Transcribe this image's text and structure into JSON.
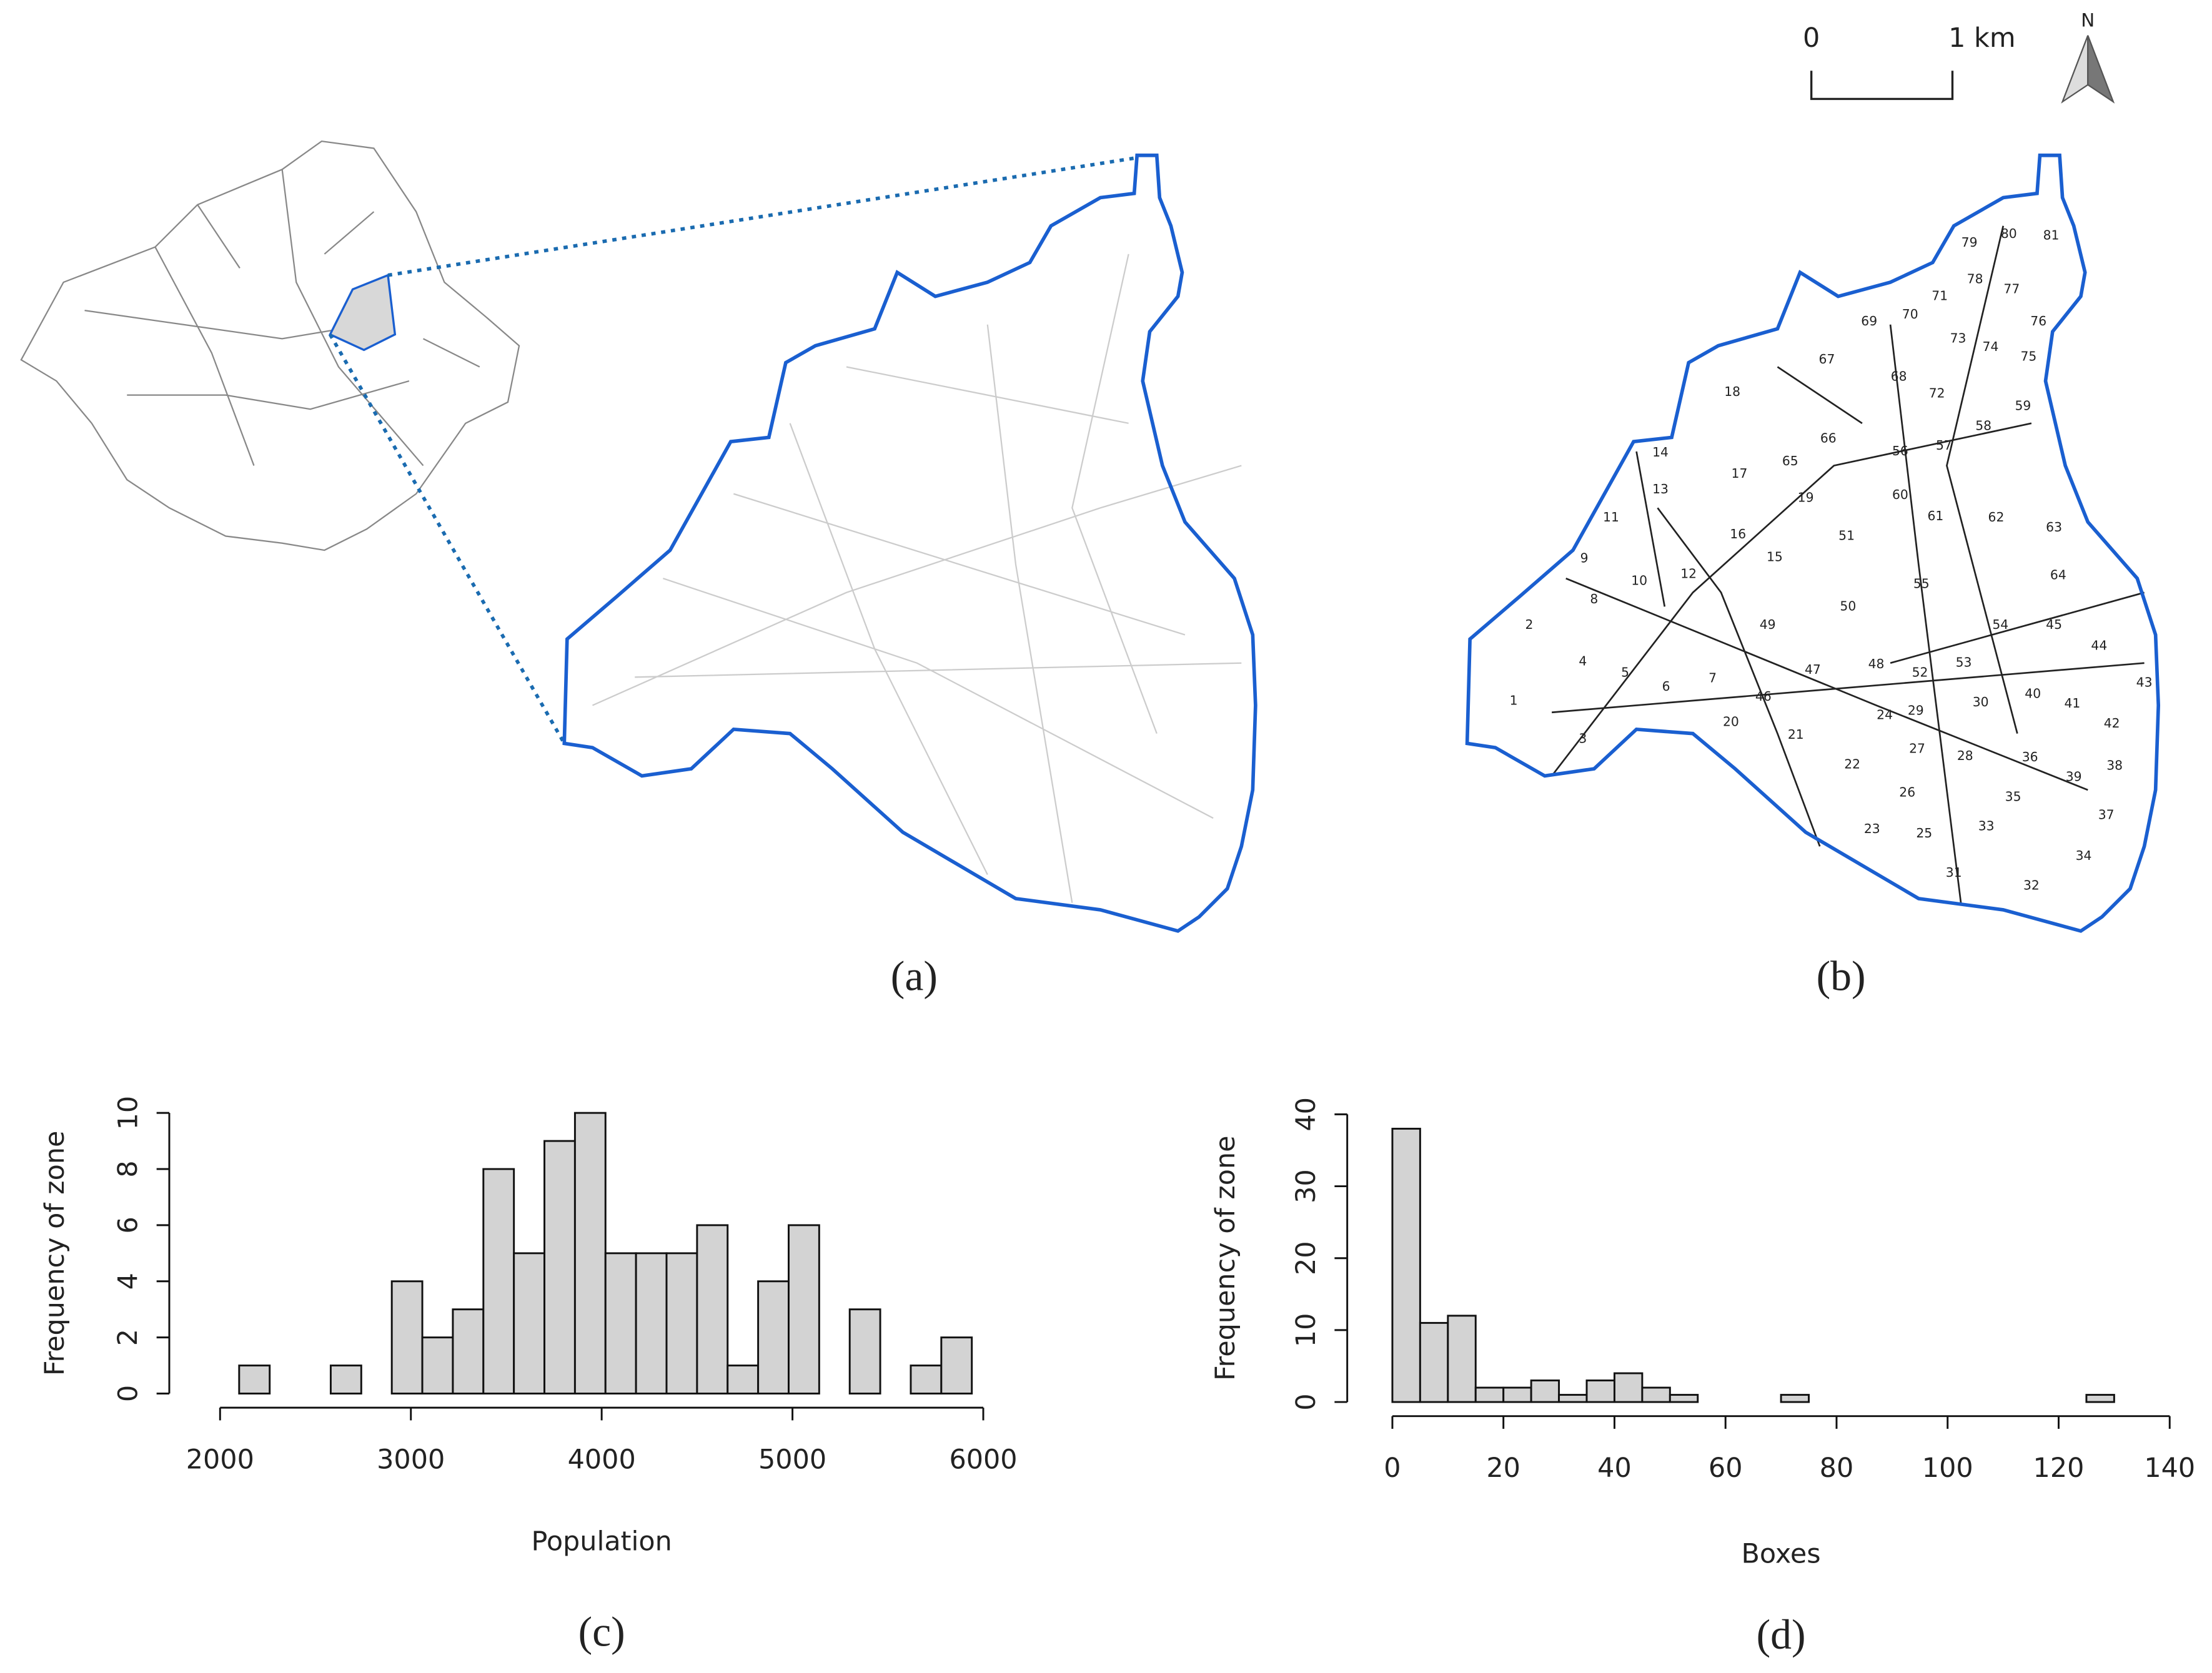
{
  "scale_bar": {
    "start": "0",
    "end": "1 km"
  },
  "north_arrow": "N",
  "panel_a": {
    "caption": "(a)"
  },
  "panel_b": {
    "caption": "(b)",
    "zone_labels": [
      1,
      2,
      3,
      4,
      5,
      6,
      7,
      8,
      9,
      10,
      11,
      12,
      13,
      14,
      15,
      16,
      17,
      18,
      19,
      20,
      21,
      22,
      23,
      24,
      25,
      26,
      27,
      28,
      29,
      30,
      31,
      32,
      33,
      34,
      35,
      36,
      37,
      38,
      39,
      40,
      41,
      42,
      43,
      44,
      45,
      46,
      47,
      48,
      49,
      50,
      51,
      52,
      53,
      54,
      55,
      56,
      57,
      58,
      59,
      60,
      61,
      62,
      63,
      64,
      65,
      66,
      67,
      68,
      69,
      70,
      71,
      72,
      73,
      74,
      75,
      76,
      77,
      78,
      79,
      80,
      81
    ]
  },
  "chart_data": [
    {
      "type": "histogram",
      "caption": "(c)",
      "x_label": "Population",
      "y_label": "Frequency of zone",
      "bins": [
        2100,
        2260,
        2420,
        2580,
        2740,
        2900,
        3060,
        3220,
        3380,
        3540,
        3700,
        3860,
        4020,
        4180,
        4340,
        4500,
        4660,
        4820,
        4980,
        5140,
        5300,
        5460,
        5620,
        5780,
        5940
      ],
      "values": [
        1,
        0,
        0,
        1,
        0,
        4,
        2,
        3,
        8,
        5,
        9,
        10,
        5,
        5,
        5,
        6,
        1,
        4,
        6,
        0,
        3,
        0,
        1,
        2
      ],
      "color": "#d3d3d3",
      "xlim": [
        2000,
        6000
      ],
      "xticks": [
        2000,
        3000,
        4000,
        5000,
        6000
      ],
      "ylim": [
        0,
        10
      ],
      "yticks": [
        0,
        2,
        4,
        6,
        8,
        10
      ]
    },
    {
      "type": "histogram",
      "caption": "(d)",
      "x_label": "Boxes",
      "y_label": "Frequency of zone",
      "bins": [
        0,
        5,
        10,
        15,
        20,
        25,
        30,
        35,
        40,
        45,
        50,
        55,
        60,
        65,
        70,
        75,
        80,
        85,
        90,
        95,
        100,
        105,
        110,
        115,
        120,
        125,
        130
      ],
      "values": [
        38,
        11,
        12,
        2,
        2,
        3,
        1,
        3,
        4,
        2,
        1,
        0,
        0,
        0,
        1,
        0,
        0,
        0,
        0,
        0,
        0,
        0,
        0,
        0,
        0,
        1
      ],
      "color": "#d3d3d3",
      "xlim": [
        0,
        140
      ],
      "xticks": [
        0,
        20,
        40,
        60,
        80,
        100,
        120,
        140
      ],
      "ylim": [
        0,
        40
      ],
      "yticks": [
        0,
        10,
        20,
        30,
        40
      ]
    }
  ]
}
